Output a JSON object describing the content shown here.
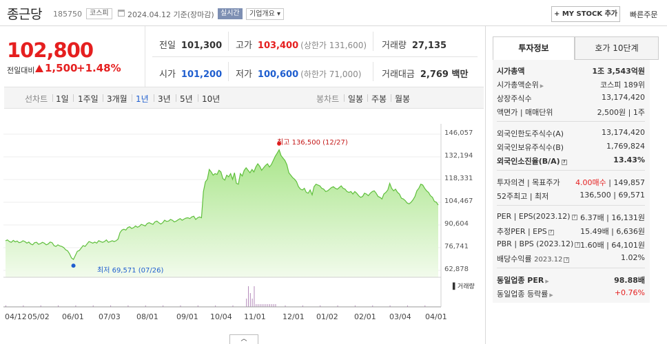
{
  "header": {
    "name": "종근당",
    "code": "185750",
    "market": "코스피",
    "date": "2024.04.12 기준(장마감)",
    "realtime": "실시간",
    "overview": "기업개요 ▾",
    "mystock": "+ MY STOCK 추가",
    "order": "빠른주문"
  },
  "price": {
    "current": "102,800",
    "change_label": "전일대비",
    "change": "1,500",
    "change_pct": "+1.48%"
  },
  "quote": {
    "prev_label": "전일",
    "prev": "101,300",
    "high_label": "고가",
    "high": "103,400",
    "upper": "(상한가 131,600)",
    "volume_label": "거래량",
    "volume": "27,135",
    "open_label": "시가",
    "open": "101,200",
    "low_label": "저가",
    "low": "100,600",
    "lower": "(하한가 71,000)",
    "amount_label": "거래대금",
    "amount": "2,769 백만"
  },
  "periods": {
    "line_label": "선차트",
    "line": [
      "1일",
      "1주일",
      "3개월",
      "1년",
      "3년",
      "5년",
      "10년"
    ],
    "active": "1년",
    "candle_label": "봉차트",
    "candle": [
      "일봉",
      "주봉",
      "월봉"
    ]
  },
  "chart_data": {
    "type": "area",
    "y_ticks": [
      "146,057",
      "132,194",
      "118,331",
      "104,467",
      "90,604",
      "76,741",
      "62,878"
    ],
    "ylim": [
      62878,
      146057
    ],
    "x_ticks": [
      "04/12",
      "05/02",
      "06/01",
      "07/03",
      "08/01",
      "09/01",
      "10/04",
      "11/01",
      "12/01",
      "01/02",
      "02/01",
      "03/04",
      "04/01"
    ],
    "high_annotation": "최고 136,500 (12/27)",
    "low_annotation": "최저 69,571 (07/26)",
    "volume_label": "거래량",
    "series": [
      {
        "values": [
          81000,
          81500,
          80500,
          80000,
          81200,
          80300,
          80800,
          79800,
          80100,
          81000,
          80500,
          79500,
          80200,
          79000,
          78500,
          79800,
          80000,
          78800,
          79200,
          80000,
          79500,
          78500,
          79000,
          80200,
          79800,
          78000,
          77500,
          78500,
          77800,
          77500,
          76800,
          75500,
          74800,
          73000,
          70500,
          69571,
          72000,
          74500,
          75000,
          76500,
          78000,
          77500,
          79000,
          80500,
          80000,
          79500,
          80200,
          79500,
          81000,
          80500,
          80000,
          80500,
          81500,
          80000,
          80500,
          81000,
          80500,
          81000,
          82000,
          86000,
          87500,
          88000,
          87500,
          89000,
          89500,
          88500,
          89000,
          90000,
          89200,
          89800,
          91000,
          90500,
          90000,
          91500,
          92000,
          91500,
          91000,
          92500,
          93000,
          92000,
          91200,
          92000,
          93500,
          92800,
          93000,
          94000,
          93500,
          92500,
          93000,
          93800,
          94500,
          93500,
          94200,
          94800,
          95000,
          94500,
          95500,
          96000,
          94000,
          95000,
          95500,
          95000,
          111000,
          117000,
          118500,
          124500,
          123000,
          121000,
          122000,
          121500,
          124000,
          123000,
          119000,
          118000,
          121000,
          120000,
          122000,
          118500,
          122500,
          116000,
          115500,
          122000,
          120500,
          124000,
          125500,
          124000,
          122500,
          124500,
          123000,
          126000,
          128000,
          126500,
          124000,
          125500,
          127000,
          128000,
          126000,
          127500,
          130000,
          132500,
          134500,
          136500,
          133000,
          131500,
          130000,
          127500,
          122500,
          121000,
          119500,
          118500,
          117000,
          114000,
          112500,
          112000,
          113000,
          110500,
          110000,
          112000,
          109000,
          114000,
          115500,
          115000,
          114500,
          113000,
          112500,
          111000,
          111500,
          112500,
          113500,
          114000,
          113000,
          112500,
          113500,
          114500,
          113000,
          112500,
          111000,
          110500,
          111000,
          109500,
          111000,
          110000,
          108500,
          107500,
          108000,
          110000,
          109500,
          108500,
          110000,
          111000,
          111500,
          110000,
          108000,
          107500,
          106500,
          109500,
          110500,
          112000,
          116000,
          113000,
          111500,
          112500,
          110500,
          109500,
          107000,
          106500,
          105500,
          104000,
          103500,
          104500,
          106000,
          108000,
          111500,
          113000,
          115500,
          115000,
          113000,
          111500,
          110500,
          108500,
          107500,
          105000,
          104500,
          102800
        ]
      }
    ]
  },
  "right": {
    "tab_active": "투자정보",
    "tab_other": "호가 10단계",
    "market_cap_label": "시가총액",
    "market_cap": "1조 3,543억원",
    "cap_rank_label": "시가총액순위",
    "cap_rank": "코스피 189위",
    "shares_label": "상장주식수",
    "shares": "13,174,420",
    "face_label": "액면가 | 매매단위",
    "face": "2,500원 | 1주",
    "foreign_limit_label": "외국인한도주식수(A)",
    "foreign_limit": "13,174,420",
    "foreign_hold_label": "외국인보유주식수(B)",
    "foreign_hold": "1,769,824",
    "foreign_ratio_label": "외국인소진율(B/A)",
    "foreign_ratio": "13.43%",
    "opinion_label": "투자의견 | 목표주가",
    "opinion": "4.00매수",
    "target": "| 149,857",
    "w52_label": "52주최고 | 최저",
    "w52": "136,500 | 69,571",
    "per_label": "PER | EPS(2023.12)",
    "per": "6.37배 | 16,131원",
    "fper_label": "추정PER | EPS",
    "fper": "15.49배 | 6,636원",
    "pbr_label": "PBR | BPS (2023.12)",
    "pbr": "1.60배 | 64,101원",
    "div_label": "배당수익률",
    "div_date": "2023.12",
    "div": "1.02%",
    "sector_per_label": "동일업종 PER",
    "sector_per": "98.88배",
    "sector_chg_label": "동일업종 등락률",
    "sector_chg": "+0.76%"
  }
}
